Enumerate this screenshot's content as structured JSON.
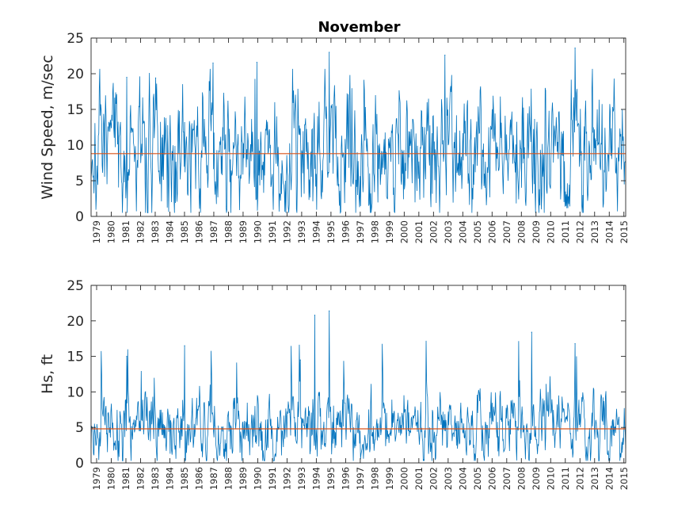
{
  "chart_data": [
    {
      "type": "line",
      "title": "November",
      "ylabel": "Wind Speed, m/sec",
      "xlabel": "",
      "ylim": [
        0,
        25
      ],
      "yticks": [
        0,
        5,
        10,
        15,
        20,
        25
      ],
      "x_tick_labels": [
        "1979",
        "1980",
        "1981",
        "1982",
        "1983",
        "1984",
        "1985",
        "1986",
        "1987",
        "1988",
        "1989",
        "1990",
        "1991",
        "1992",
        "1993",
        "1994",
        "1995",
        "1996",
        "1997",
        "1998",
        "1999",
        "2000",
        "2001",
        "2002",
        "2003",
        "2004",
        "2005",
        "2006",
        "2007",
        "2008",
        "2009",
        "2010",
        "2011",
        "2012",
        "2013",
        "2014",
        "2015"
      ],
      "series": [
        {
          "kind": "time-series",
          "color": "#0072BD",
          "approx_min": 0.5,
          "approx_max": 23.5,
          "approx_mean": 8.8
        },
        {
          "kind": "mean-line",
          "color": "#D95319",
          "value": 8.8
        }
      ],
      "notable_peaks": [
        {
          "year": "1995",
          "value": 23.0
        },
        {
          "year": "2003",
          "value": 22.6
        },
        {
          "year": "2012",
          "value": 23.6
        },
        {
          "year": "1990",
          "value": 21.6
        },
        {
          "year": "1987",
          "value": 21.5
        },
        {
          "year": "1983",
          "value": 19.4
        },
        {
          "year": "1981",
          "value": 19.5
        }
      ],
      "grid": false
    },
    {
      "type": "line",
      "title": "",
      "ylabel": "Hs, ft",
      "xlabel": "",
      "ylim": [
        0,
        25
      ],
      "yticks": [
        0,
        5,
        10,
        15,
        20,
        25
      ],
      "x_tick_labels": [
        "1979",
        "1980",
        "1981",
        "1982",
        "1983",
        "1984",
        "1985",
        "1986",
        "1987",
        "1988",
        "1989",
        "1990",
        "1991",
        "1992",
        "1993",
        "1994",
        "1995",
        "1996",
        "1997",
        "1998",
        "1999",
        "2000",
        "2001",
        "2002",
        "2003",
        "2004",
        "2005",
        "2006",
        "2007",
        "2008",
        "2009",
        "2010",
        "2011",
        "2012",
        "2013",
        "2014",
        "2015"
      ],
      "series": [
        {
          "kind": "time-series",
          "color": "#0072BD",
          "approx_min": 0.3,
          "approx_max": 21.4,
          "approx_mean": 4.8
        },
        {
          "kind": "mean-line",
          "color": "#D95319",
          "value": 4.8
        }
      ],
      "notable_peaks": [
        {
          "year": "1995",
          "value": 21.4
        },
        {
          "year": "1994",
          "value": 20.8
        },
        {
          "year": "2009",
          "value": 18.4
        },
        {
          "year": "2012",
          "value": 16.8
        },
        {
          "year": "1985",
          "value": 16.5
        },
        {
          "year": "1981",
          "value": 15.0
        },
        {
          "year": "1993",
          "value": 14.5
        }
      ],
      "grid": false
    }
  ]
}
